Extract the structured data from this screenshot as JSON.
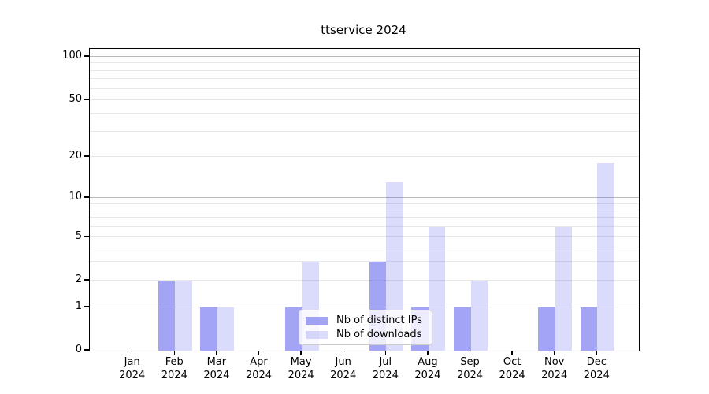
{
  "chart_data": {
    "type": "bar",
    "title": "ttservice 2024",
    "categories": [
      "Jan",
      "Feb",
      "Mar",
      "Apr",
      "May",
      "Jun",
      "Jul",
      "Aug",
      "Sep",
      "Oct",
      "Nov",
      "Dec"
    ],
    "category_year": "2024",
    "series": [
      {
        "name": "Nb of distinct IPs",
        "color": "rgba(90,90,235,0.55)",
        "color_hex": "#a4a4f6",
        "values": [
          0,
          2,
          1,
          0,
          1,
          0,
          3,
          1,
          1,
          0,
          1,
          1
        ]
      },
      {
        "name": "Nb of downloads",
        "color": "rgba(90,90,235,0.22)",
        "color_hex": "#dbdbf9",
        "values": [
          0,
          2,
          1,
          0,
          3,
          0,
          13,
          6,
          2,
          0,
          6,
          18
        ]
      }
    ],
    "y_axis": {
      "tick_labels": [
        "0",
        "1",
        "2",
        "5",
        "10",
        "20",
        "50",
        "100"
      ],
      "tick_values": [
        0,
        1,
        2,
        5,
        10,
        20,
        50,
        100
      ],
      "scale_anchors": [
        [
          0,
          0
        ],
        [
          1,
          0.1436
        ],
        [
          2,
          0.2324
        ],
        [
          5,
          0.376
        ],
        [
          10,
          0.5065
        ],
        [
          20,
          0.6423
        ],
        [
          50,
          0.8303
        ],
        [
          100,
          0.9739
        ]
      ],
      "major_gridlines": [
        1,
        10,
        100
      ],
      "minor_gridlines": [
        2,
        3,
        4,
        5,
        6,
        7,
        8,
        9,
        20,
        30,
        40,
        50,
        60,
        70,
        80,
        90
      ]
    },
    "x_axis": {
      "tick_count": 12
    },
    "legend_position": "lower-center",
    "grid": true,
    "colors": {
      "major_grid": "#b9b9b9",
      "minor_grid": "#e8e8e8",
      "spine": "#000000"
    }
  }
}
